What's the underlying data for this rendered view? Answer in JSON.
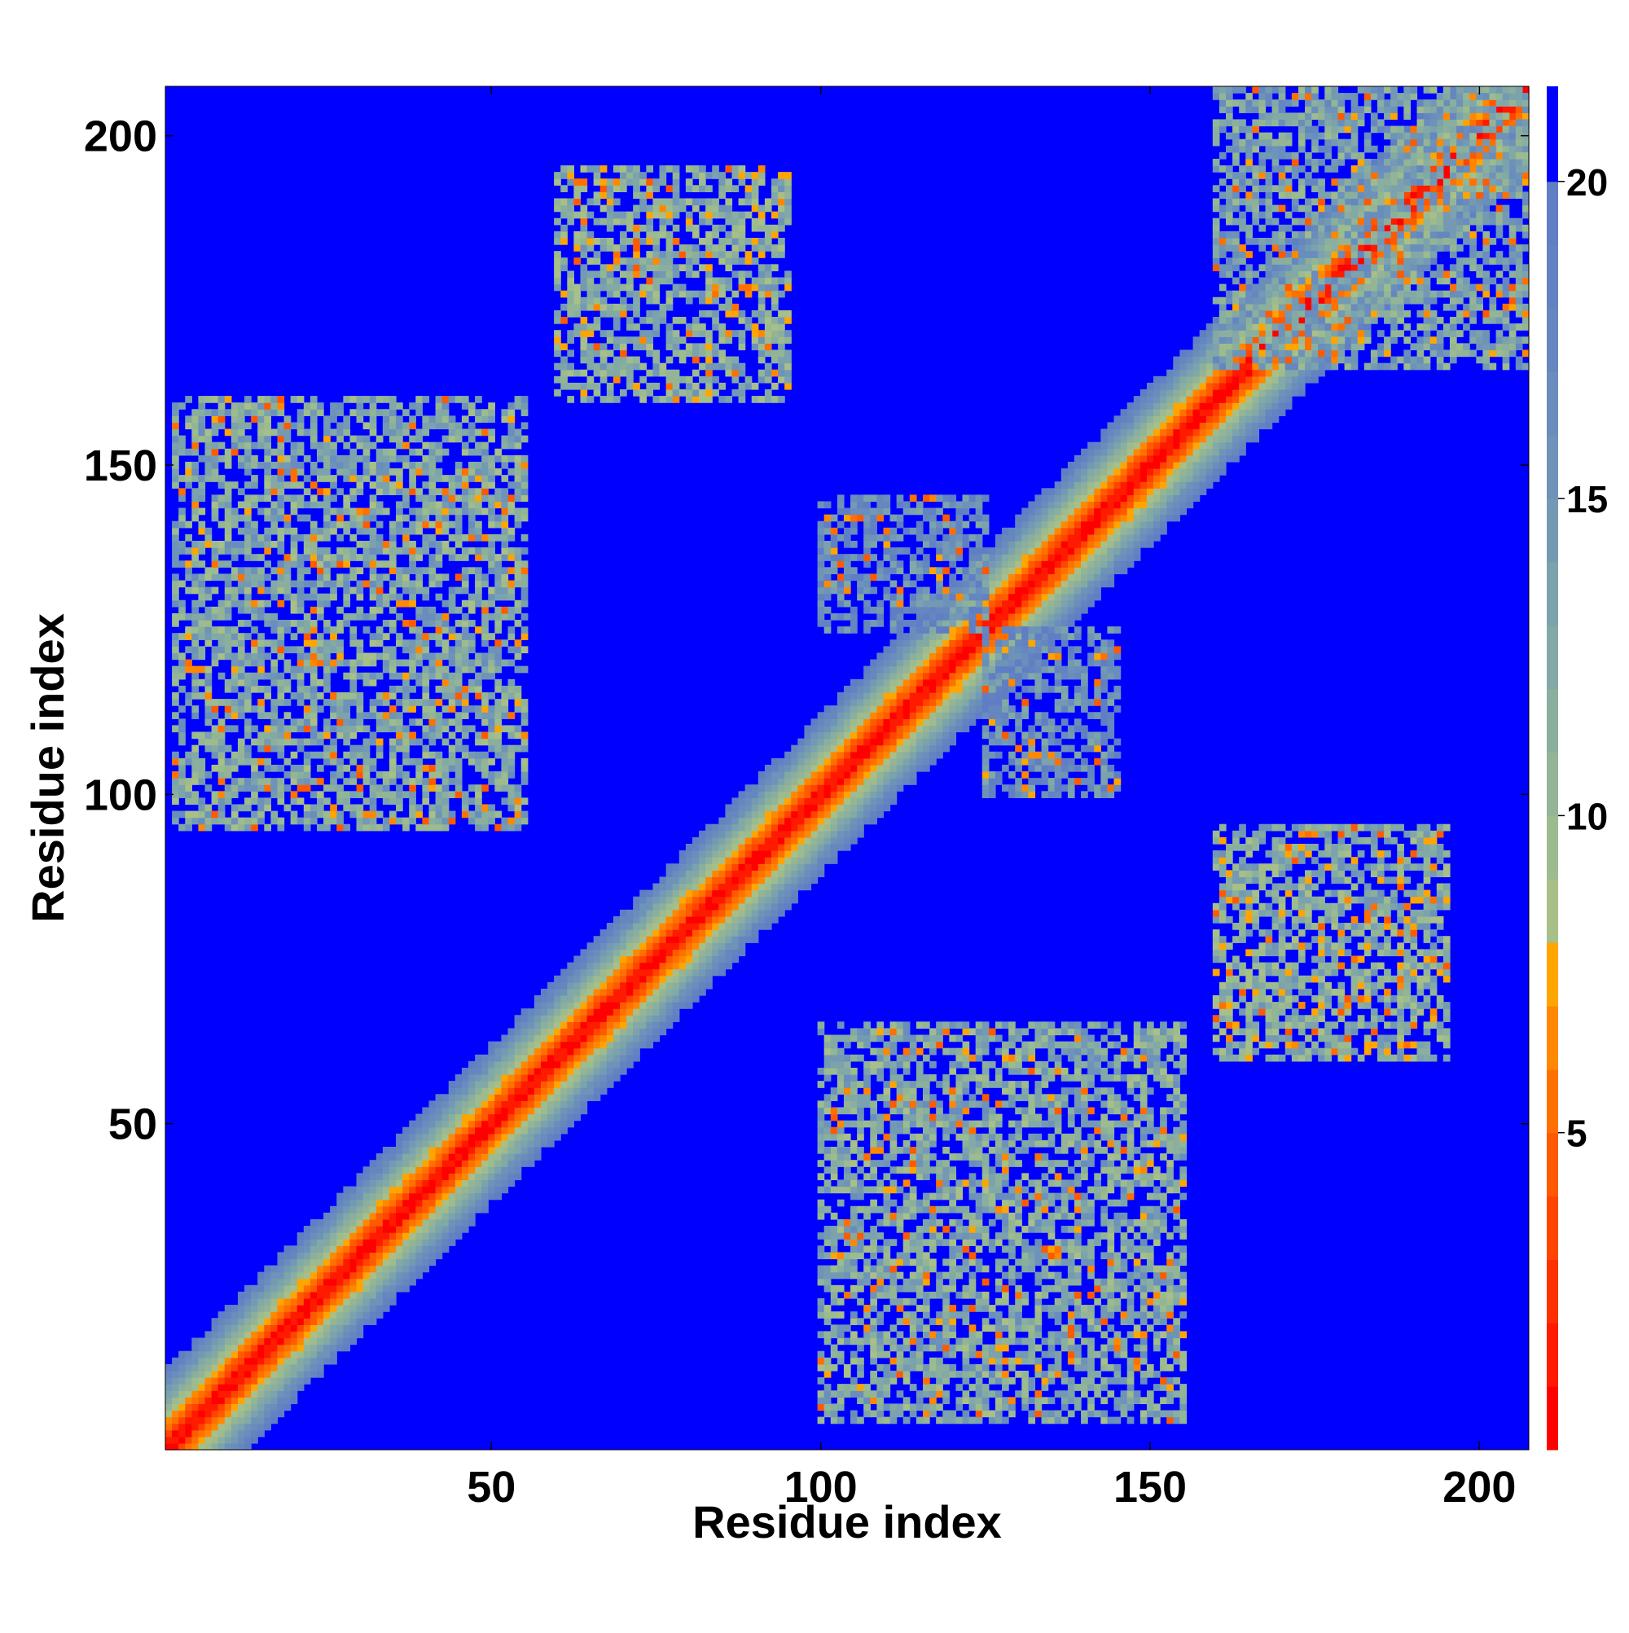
{
  "chart_data": {
    "type": "heatmap",
    "title": "",
    "xlabel": "Residue index",
    "ylabel": "Residue index",
    "x_range": [
      1,
      207
    ],
    "y_range": [
      1,
      207
    ],
    "x_ticks": [
      50,
      100,
      150,
      200
    ],
    "y_ticks": [
      50,
      100,
      150,
      200
    ],
    "colorbar": {
      "range": [
        0,
        21.5
      ],
      "ticks": [
        5,
        10,
        15,
        20
      ],
      "levels": [
        {
          "from": 0,
          "to": 1,
          "color": "#ff0000"
        },
        {
          "from": 1,
          "to": 2,
          "color": "#ff1a00"
        },
        {
          "from": 2,
          "to": 3,
          "color": "#ff3000"
        },
        {
          "from": 3,
          "to": 4,
          "color": "#ff4500"
        },
        {
          "from": 4,
          "to": 5,
          "color": "#ff5a00"
        },
        {
          "from": 5,
          "to": 6,
          "color": "#ff7000"
        },
        {
          "from": 6,
          "to": 7,
          "color": "#ff8800"
        },
        {
          "from": 7,
          "to": 8,
          "color": "#ffa500"
        },
        {
          "from": 8,
          "to": 9,
          "color": "#a8bf88"
        },
        {
          "from": 9,
          "to": 10,
          "color": "#9cbb8f"
        },
        {
          "from": 10,
          "to": 11,
          "color": "#93b596"
        },
        {
          "from": 11,
          "to": 12,
          "color": "#8aaf9e"
        },
        {
          "from": 12,
          "to": 13,
          "color": "#82a9a6"
        },
        {
          "from": 13,
          "to": 14,
          "color": "#7ba2ad"
        },
        {
          "from": 14,
          "to": 15,
          "color": "#749ab3"
        },
        {
          "from": 15,
          "to": 16,
          "color": "#6e93b8"
        },
        {
          "from": 16,
          "to": 17,
          "color": "#698dbc"
        },
        {
          "from": 17,
          "to": 18,
          "color": "#6587bf"
        },
        {
          "from": 18,
          "to": 19,
          "color": "#6282c2"
        },
        {
          "from": 19,
          "to": 20,
          "color": "#5f7ec4"
        },
        {
          "from": 20,
          "to": 21.5,
          "color": "#0000ff"
        }
      ]
    },
    "matrix_description": "Symmetric residue-residue distance map; red/orange main diagonal; off-diagonal contact bands near (20,140), (85,170), (130,40), (170,75), (140,25) with mirror-symmetric counterparts",
    "contact_regions": [
      {
        "x": [
          2,
          55
        ],
        "y": [
          95,
          160
        ],
        "level": 11
      },
      {
        "x": [
          60,
          95
        ],
        "y": [
          160,
          195
        ],
        "level": 10
      },
      {
        "x": [
          160,
          195
        ],
        "y": [
          60,
          95
        ],
        "level": 10
      },
      {
        "x": [
          100,
          155
        ],
        "y": [
          5,
          65
        ],
        "level": 11
      },
      {
        "x": [
          160,
          207
        ],
        "y": [
          165,
          207
        ],
        "level": 12
      },
      {
        "x": [
          100,
          125
        ],
        "y": [
          125,
          145
        ],
        "level": 15
      },
      {
        "x": [
          125,
          145
        ],
        "y": [
          100,
          125
        ],
        "level": 15
      }
    ],
    "grid": false,
    "legend": "colorbar-right"
  }
}
